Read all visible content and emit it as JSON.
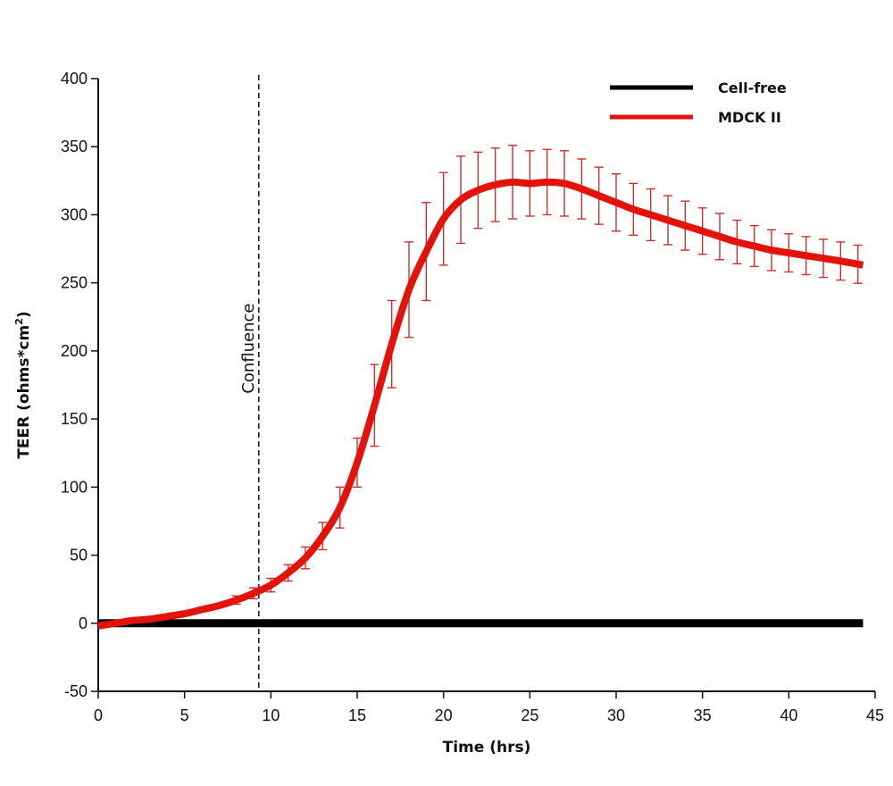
{
  "chart_data": {
    "type": "line",
    "title": "",
    "xlabel": "Time (hrs)",
    "ylabel": "TEER (ohms*cm",
    "ylabel_superscript": "2",
    "ylabel_close": ")",
    "xlim": [
      0,
      45
    ],
    "ylim": [
      -50,
      400
    ],
    "x_ticks": [
      0,
      5,
      10,
      15,
      20,
      25,
      30,
      35,
      40,
      45
    ],
    "x_tick_labels": [
      "0",
      "5",
      "10",
      "15",
      "20",
      "25",
      "30",
      "35",
      "40",
      "45"
    ],
    "y_ticks": [
      -50,
      0,
      50,
      100,
      150,
      200,
      250,
      300,
      350,
      400
    ],
    "y_tick_labels": [
      "-50",
      "0",
      "50",
      "100",
      "150",
      "200",
      "250",
      "300",
      "350",
      "400"
    ],
    "grid": false,
    "legend_position": "top-right",
    "annotations": [
      {
        "type": "vline",
        "x": 9.3,
        "label": "Confluence",
        "style": "dashed"
      }
    ],
    "series": [
      {
        "name": "Cell-free",
        "color": "#000000",
        "x": [
          0,
          44.3
        ],
        "values": [
          0,
          0
        ]
      },
      {
        "name": "MDCK II",
        "color": "#e3120b",
        "x": [
          0,
          1,
          2,
          3,
          4,
          5,
          6,
          7,
          8,
          9,
          10,
          11,
          12,
          13,
          14,
          15,
          16,
          17,
          18,
          19,
          20,
          21,
          22,
          23,
          24,
          25,
          26,
          27,
          28,
          29,
          30,
          31,
          32,
          33,
          34,
          35,
          36,
          37,
          38,
          39,
          40,
          41,
          42,
          43,
          44.3
        ],
        "values": [
          -2,
          0,
          2,
          3,
          5,
          7,
          10,
          13,
          17,
          22,
          28,
          37,
          48,
          64,
          85,
          118,
          160,
          205,
          245,
          273,
          297,
          311,
          318,
          322,
          324,
          323,
          324,
          323,
          319,
          314,
          309,
          304,
          300,
          296,
          292,
          288,
          284,
          280,
          277,
          274,
          272,
          270,
          268,
          266,
          263
        ]
      }
    ],
    "error_bars": {
      "series": "MDCK II",
      "x": [
        8,
        9,
        10,
        11,
        12,
        13,
        14,
        15,
        16,
        17,
        18,
        19,
        20,
        21,
        22,
        23,
        24,
        25,
        26,
        27,
        28,
        29,
        30,
        31,
        32,
        33,
        34,
        35,
        36,
        37,
        38,
        39,
        40,
        41,
        42,
        43,
        44
      ],
      "errors": [
        3,
        4,
        5,
        6,
        8,
        10,
        15,
        18,
        30,
        32,
        35,
        36,
        34,
        32,
        28,
        27,
        27,
        24,
        24,
        24,
        22,
        21,
        21,
        19,
        19,
        18,
        18,
        17,
        17,
        16,
        15,
        15,
        14,
        14,
        14,
        14,
        14
      ]
    }
  }
}
